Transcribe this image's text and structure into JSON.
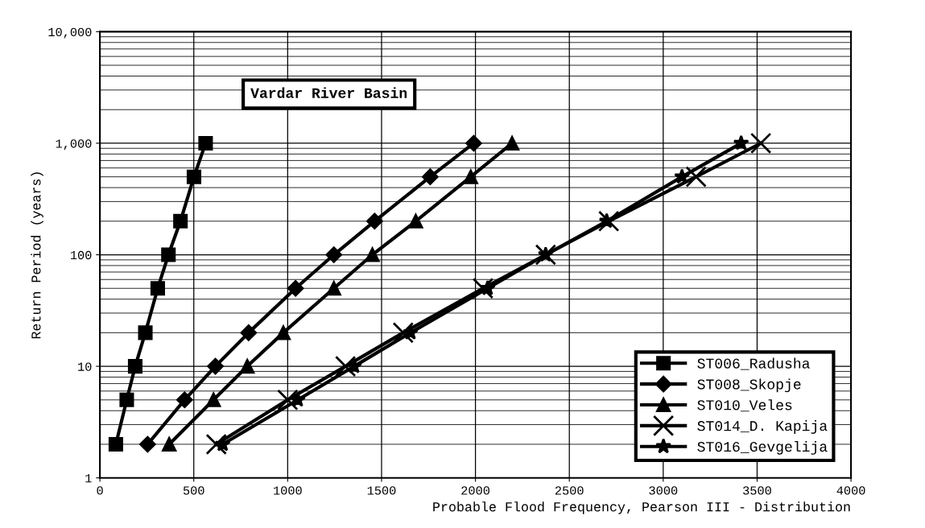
{
  "chart_data": {
    "type": "line",
    "title": "Vardar River Basin",
    "xlabel": "Probable Flood Frequency, Pearson III - Distribution",
    "ylabel": "Return Period (years)",
    "log": "y",
    "grid": true,
    "legend": "bottom right",
    "xlim": [
      0,
      4000
    ],
    "xticks": [
      0,
      500,
      1000,
      1500,
      2000,
      2500,
      3000,
      3500,
      4000
    ],
    "ylim": [
      1,
      10000
    ],
    "yticks": [
      1,
      10,
      100,
      {
        "value": 1000,
        "label": "1,000"
      },
      {
        "value": 10000,
        "label": "10,000"
      }
    ],
    "series": [
      {
        "name": "ST006_Radusha",
        "color": "#000000",
        "marker": "square",
        "x": [
          85,
          143,
          188,
          242,
          308,
          365,
          429,
          501,
          563
        ],
        "values": [
          2,
          5,
          10,
          20,
          50,
          100,
          200,
          500,
          1000
        ]
      },
      {
        "name": "ST008_Skopje",
        "color": "#000000",
        "marker": "diamond",
        "x": [
          254,
          451,
          615,
          792,
          1042,
          1246,
          1463,
          1759,
          1991
        ],
        "values": [
          2,
          5,
          10,
          20,
          50,
          100,
          200,
          500,
          1000
        ]
      },
      {
        "name": "ST010_Veles",
        "color": "#000000",
        "marker": "triangle",
        "x": [
          369,
          605,
          785,
          977,
          1246,
          1451,
          1682,
          1975,
          2195
        ],
        "values": [
          2,
          5,
          10,
          20,
          50,
          100,
          200,
          500,
          1000
        ]
      },
      {
        "name": "ST014_D. Kapija",
        "color": "#000000",
        "marker": "cross",
        "x": [
          620,
          1000,
          1308,
          1615,
          2040,
          2374,
          2710,
          3175,
          3520
        ],
        "values": [
          2,
          5,
          10,
          20,
          50,
          100,
          200,
          500,
          1000
        ]
      },
      {
        "name": "ST016_Gevgelija",
        "color": "#000000",
        "marker": "star",
        "x": [
          654,
          1054,
          1354,
          1654,
          2065,
          2374,
          2699,
          3100,
          3415
        ],
        "values": [
          2,
          5,
          10,
          20,
          50,
          100,
          200,
          500,
          1000
        ]
      }
    ]
  }
}
